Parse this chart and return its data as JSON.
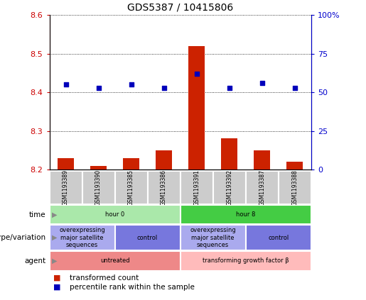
{
  "title": "GDS5387 / 10415806",
  "samples": [
    "GSM1193389",
    "GSM1193390",
    "GSM1193385",
    "GSM1193386",
    "GSM1193391",
    "GSM1193392",
    "GSM1193387",
    "GSM1193388"
  ],
  "transformed_count": [
    8.23,
    8.21,
    8.23,
    8.25,
    8.52,
    8.28,
    8.25,
    8.22
  ],
  "percentile_rank": [
    55,
    53,
    55,
    53,
    62,
    53,
    56,
    53
  ],
  "ylim_left": [
    8.2,
    8.6
  ],
  "ylim_right": [
    0,
    100
  ],
  "yticks_left": [
    8.2,
    8.3,
    8.4,
    8.5,
    8.6
  ],
  "yticks_right": [
    0,
    25,
    50,
    75,
    100
  ],
  "ytick_right_labels": [
    "0",
    "25",
    "50",
    "75",
    "100%"
  ],
  "bar_color": "#cc2200",
  "dot_color": "#0000bb",
  "bar_bottom": 8.2,
  "bar_width": 0.5,
  "time_groups": [
    {
      "label": "hour 0",
      "start": 0,
      "end": 4,
      "color": "#aae8aa"
    },
    {
      "label": "hour 8",
      "start": 4,
      "end": 8,
      "color": "#44cc44"
    }
  ],
  "genotype_groups": [
    {
      "label": "overexpressing\nmajor satellite\nsequences",
      "start": 0,
      "end": 2,
      "color": "#aaaaee"
    },
    {
      "label": "control",
      "start": 2,
      "end": 4,
      "color": "#7777dd"
    },
    {
      "label": "overexpressing\nmajor satellite\nsequences",
      "start": 4,
      "end": 6,
      "color": "#aaaaee"
    },
    {
      "label": "control",
      "start": 6,
      "end": 8,
      "color": "#7777dd"
    }
  ],
  "agent_groups": [
    {
      "label": "untreated",
      "start": 0,
      "end": 4,
      "color": "#ee8888"
    },
    {
      "label": "transforming growth factor β",
      "start": 4,
      "end": 8,
      "color": "#ffbbbb"
    }
  ],
  "row_labels": [
    "time",
    "genotype/variation",
    "agent"
  ],
  "legend_items": [
    {
      "color": "#cc2200",
      "label": "transformed count"
    },
    {
      "color": "#0000bb",
      "label": "percentile rank within the sample"
    }
  ],
  "axis_color_left": "#cc0000",
  "axis_color_right": "#0000cc",
  "sample_box_color": "#cccccc",
  "sample_box_edge": "#ffffff",
  "fig_width": 5.15,
  "fig_height": 4.23,
  "fig_dpi": 100
}
